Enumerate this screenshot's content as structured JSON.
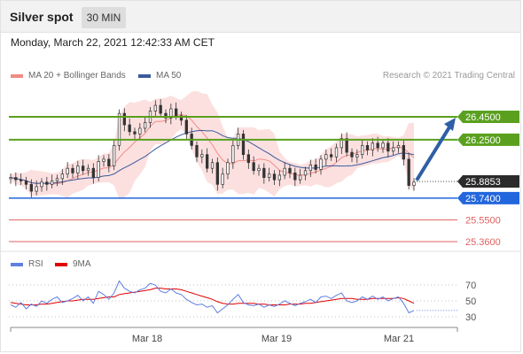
{
  "header": {
    "title": "Silver spot",
    "timeframe": "30 MIN"
  },
  "timestamp": "Monday, March 22, 2021 12:42:33 AM CET",
  "legend": {
    "ma20_label": "MA 20 + Bollinger Bands",
    "ma50_label": "MA 50",
    "copyright": "Research © 2021 Trading Central",
    "rsi_label": "RSI",
    "ma9_label": "9MA"
  },
  "colors": {
    "ma20": "#f28b85",
    "ma50": "#3a5a9c",
    "resistance": "#5aa01e",
    "support": "#2266dd",
    "target": "#e06060",
    "arrow": "#2e5fa6",
    "rsi": "#5f7fe0",
    "rsi_ma": "#e00000"
  },
  "chart_data": {
    "type": "candlestick",
    "x_tick_labels": [
      "Mar 18",
      "Mar 19",
      "Mar 21"
    ],
    "price_levels": [
      {
        "label": "26.4500",
        "value": 26.45,
        "kind": "resistance"
      },
      {
        "label": "26.2500",
        "value": 26.25,
        "kind": "resistance"
      },
      {
        "label": "25.8853",
        "value": 25.8853,
        "kind": "last-price"
      },
      {
        "label": "25.7400",
        "value": 25.74,
        "kind": "pivot"
      },
      {
        "label": "25.5500",
        "value": 25.55,
        "kind": "support"
      },
      {
        "label": "25.3600",
        "value": 25.36,
        "kind": "support"
      }
    ],
    "price_range": [
      25.36,
      26.45
    ],
    "close_series": [
      25.92,
      25.9,
      25.89,
      25.86,
      25.8,
      25.84,
      25.88,
      25.86,
      25.89,
      25.91,
      25.95,
      26.0,
      25.96,
      26.02,
      25.98,
      26.0,
      25.92,
      26.06,
      26.08,
      26.02,
      26.2,
      26.48,
      26.38,
      26.32,
      26.3,
      26.35,
      26.4,
      26.5,
      26.55,
      26.48,
      26.44,
      26.52,
      26.46,
      26.42,
      26.3,
      26.2,
      26.1,
      26.12,
      26.0,
      26.05,
      25.86,
      25.95,
      26.05,
      26.2,
      26.3,
      26.12,
      26.05,
      25.98,
      26.0,
      25.92,
      25.95,
      25.9,
      25.94,
      26.0,
      25.96,
      25.9,
      25.94,
      25.98,
      26.03,
      25.99,
      26.08,
      26.12,
      26.1,
      26.18,
      26.26,
      26.14,
      26.1,
      26.12,
      26.2,
      26.16,
      26.22,
      26.18,
      26.22,
      26.15,
      26.18,
      26.2,
      26.08,
      25.85,
      25.88
    ],
    "rsi_series": [
      45,
      42,
      48,
      40,
      46,
      43,
      50,
      47,
      52,
      55,
      48,
      50,
      53,
      57,
      50,
      55,
      47,
      62,
      58,
      52,
      60,
      75,
      66,
      62,
      60,
      64,
      66,
      72,
      70,
      62,
      60,
      65,
      60,
      58,
      52,
      48,
      45,
      46,
      42,
      44,
      35,
      40,
      45,
      52,
      58,
      48,
      45,
      44,
      46,
      42,
      45,
      43,
      46,
      50,
      47,
      44,
      47,
      49,
      52,
      48,
      55,
      56,
      53,
      57,
      60,
      50,
      48,
      50,
      55,
      52,
      56,
      52,
      55,
      50,
      53,
      55,
      47,
      35,
      38
    ],
    "rsi_ma_series": [
      48,
      47,
      46,
      45,
      45,
      45,
      46,
      46,
      47,
      48,
      49,
      50,
      50,
      51,
      52,
      52,
      52,
      53,
      54,
      55,
      55,
      58,
      59,
      60,
      61,
      62,
      63,
      64,
      66,
      66,
      65,
      65,
      65,
      64,
      62,
      60,
      58,
      56,
      54,
      52,
      49,
      47,
      46,
      46,
      47,
      47,
      47,
      47,
      46,
      46,
      45,
      45,
      45,
      45,
      46,
      46,
      46,
      47,
      47,
      48,
      49,
      50,
      51,
      52,
      53,
      53,
      53,
      52,
      52,
      52,
      53,
      53,
      53,
      53,
      53,
      54,
      53,
      50,
      47
    ],
    "rsi_levels": [
      30,
      50,
      70
    ],
    "outlook": "up",
    "target": 26.45
  }
}
